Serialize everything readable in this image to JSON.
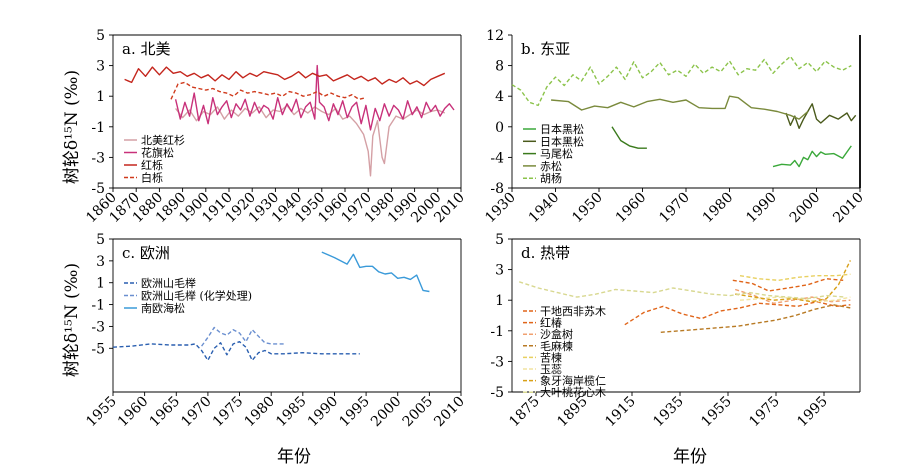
{
  "figure": {
    "ylabel_top": "树轮δ¹⁵N (‰)",
    "ylabel_bottom": "树轮δ¹⁵N (‰)",
    "xlabel_left": "年份",
    "xlabel_right": "年份"
  },
  "chart_data": [
    {
      "type": "line",
      "title": "a. 北美",
      "xlim": [
        1860,
        2010
      ],
      "ylim": [
        -5,
        5
      ],
      "xticks": [
        1860,
        1870,
        1880,
        1890,
        1900,
        1910,
        1920,
        1930,
        1940,
        1950,
        1960,
        1970,
        1980,
        1990,
        2000,
        2010
      ],
      "yticks": [
        -5,
        -3,
        -1,
        1,
        3,
        5
      ],
      "legend_position": "bottom-left",
      "grid": false,
      "series": [
        {
          "name": "北美红杉",
          "color": "#d4a0a5",
          "dash": "solid",
          "x": [
            1887,
            1890,
            1893,
            1896,
            1899,
            1902,
            1905,
            1908,
            1911,
            1914,
            1917,
            1920,
            1923,
            1926,
            1929,
            1932,
            1935,
            1938,
            1941,
            1944,
            1947,
            1950,
            1953,
            1956,
            1959,
            1962,
            1965,
            1968,
            1970,
            1971,
            1972,
            1974,
            1976,
            1977,
            1979,
            1982,
            1985,
            1988,
            1991,
            1994,
            1997,
            2000,
            2003
          ],
          "y": [
            0.2,
            -0.4,
            0.1,
            -0.6,
            0.0,
            -0.2,
            0.3,
            -0.5,
            0.1,
            -0.3,
            0.2,
            -0.1,
            0.3,
            -0.4,
            0.1,
            0.0,
            0.4,
            -0.2,
            0.2,
            -0.1,
            0.3,
            0.0,
            -0.2,
            0.2,
            -0.5,
            -0.3,
            -0.8,
            -1.5,
            -2.6,
            -4.2,
            -1.6,
            -0.6,
            -3.0,
            -3.4,
            -1.0,
            -0.3,
            -0.5,
            -0.2,
            0.1,
            -0.2,
            0.0,
            0.1,
            -0.1
          ]
        },
        {
          "name": "花旗松",
          "color": "#c8317a",
          "dash": "solid",
          "x": [
            1887,
            1889,
            1891,
            1893,
            1895,
            1897,
            1899,
            1901,
            1903,
            1905,
            1907,
            1909,
            1911,
            1913,
            1915,
            1917,
            1919,
            1921,
            1923,
            1925,
            1927,
            1929,
            1931,
            1933,
            1935,
            1937,
            1939,
            1941,
            1943,
            1945,
            1947,
            1948,
            1949,
            1951,
            1953,
            1955,
            1957,
            1959,
            1961,
            1963,
            1965,
            1967,
            1969,
            1971,
            1973,
            1975,
            1977,
            1979,
            1981,
            1983,
            1985,
            1987,
            1989,
            1991,
            1993,
            1995,
            1997,
            1999,
            2001,
            2003,
            2005,
            2007
          ],
          "y": [
            0.8,
            -0.5,
            0.6,
            -0.3,
            1.2,
            -0.6,
            0.4,
            -0.8,
            0.9,
            -0.2,
            0.3,
            0.7,
            -0.4,
            0.5,
            0.1,
            0.8,
            -0.3,
            0.6,
            -0.1,
            0.4,
            0.2,
            -0.5,
            0.9,
            -0.2,
            0.5,
            0.0,
            0.8,
            -0.4,
            0.3,
            0.6,
            -0.5,
            3.0,
            0.6,
            0.3,
            -0.6,
            0.5,
            -0.2,
            0.7,
            -0.4,
            0.3,
            0.6,
            -0.8,
            0.4,
            -1.2,
            0.2,
            -0.6,
            0.5,
            -0.3,
            0.4,
            0.1,
            -0.5,
            0.7,
            -0.2,
            0.3,
            -0.4,
            0.6,
            0.0,
            0.4,
            -0.3,
            0.2,
            0.5,
            0.1
          ]
        },
        {
          "name": "红栎",
          "color": "#c4261d",
          "dash": "solid",
          "x": [
            1865,
            1868,
            1871,
            1874,
            1877,
            1880,
            1883,
            1886,
            1889,
            1892,
            1895,
            1898,
            1901,
            1904,
            1907,
            1910,
            1913,
            1916,
            1919,
            1922,
            1925,
            1928,
            1931,
            1934,
            1937,
            1940,
            1943,
            1946,
            1949,
            1952,
            1955,
            1958,
            1961,
            1964,
            1967,
            1970,
            1973,
            1976,
            1979,
            1982,
            1985,
            1988,
            1991,
            1994,
            1997,
            2000,
            2003
          ],
          "y": [
            2.1,
            1.9,
            2.8,
            2.3,
            2.9,
            2.4,
            2.9,
            2.5,
            2.6,
            2.3,
            2.5,
            2.2,
            2.4,
            2.0,
            2.4,
            2.1,
            2.6,
            2.2,
            2.5,
            2.3,
            2.6,
            2.5,
            2.4,
            2.1,
            2.3,
            2.6,
            2.2,
            2.5,
            2.3,
            2.4,
            2.0,
            2.2,
            2.4,
            2.1,
            2.3,
            2.0,
            2.2,
            1.8,
            2.1,
            1.9,
            2.2,
            1.8,
            2.0,
            1.7,
            2.1,
            2.3,
            2.5
          ]
        },
        {
          "name": "白栎",
          "color": "#d03a1c",
          "dash": "dashed",
          "x": [
            1885,
            1888,
            1891,
            1894,
            1897,
            1900,
            1903,
            1906,
            1909,
            1912,
            1915,
            1918,
            1921,
            1924,
            1927,
            1930,
            1933,
            1936,
            1939,
            1942,
            1945,
            1948,
            1951,
            1954,
            1957,
            1960,
            1963,
            1966,
            1969
          ],
          "y": [
            0.8,
            1.8,
            1.9,
            1.6,
            1.5,
            1.4,
            1.5,
            1.3,
            1.2,
            1.0,
            1.4,
            1.2,
            1.3,
            1.2,
            1.1,
            1.2,
            1.0,
            1.3,
            1.2,
            1.0,
            1.1,
            1.3,
            1.0,
            1.2,
            1.0,
            0.9,
            1.1,
            0.8,
            0.9
          ]
        }
      ]
    },
    {
      "type": "line",
      "title": "b. 东亚",
      "xlim": [
        1930,
        2010
      ],
      "ylim": [
        -8,
        12
      ],
      "xticks": [
        1930,
        1940,
        1950,
        1960,
        1970,
        1980,
        1990,
        2000,
        2010
      ],
      "yticks": [
        -8,
        -4,
        0,
        4,
        8,
        12
      ],
      "legend_position": "bottom-left",
      "grid": false,
      "series": [
        {
          "name": "日本黑松",
          "color": "#3aa83a",
          "dash": "solid",
          "x": [
            1990,
            1992,
            1994,
            1995,
            1996,
            1997,
            1998,
            1999,
            2000,
            2001,
            2002,
            2004,
            2006,
            2008
          ],
          "y": [
            -5.2,
            -4.9,
            -5.0,
            -4.4,
            -5.2,
            -4.0,
            -4.3,
            -3.2,
            -3.9,
            -3.3,
            -3.6,
            -3.5,
            -4.1,
            -2.5
          ]
        },
        {
          "name": "日本黑松",
          "color": "#4a5a1c",
          "dash": "solid",
          "x": [
            1993,
            1994,
            1995,
            1996,
            1997,
            1998,
            1999,
            2000,
            2001,
            2003,
            2005,
            2007,
            2008,
            2009
          ],
          "y": [
            1.8,
            0.2,
            1.4,
            -0.2,
            1.0,
            2.0,
            3.0,
            1.0,
            0.5,
            1.5,
            1.0,
            1.8,
            0.8,
            1.5
          ]
        },
        {
          "name": "马尾松",
          "color": "#3a7a1c",
          "dash": "solid",
          "x": [
            1953,
            1955,
            1957,
            1959,
            1961
          ],
          "y": [
            0.0,
            -1.8,
            -2.5,
            -2.8,
            -2.8
          ]
        },
        {
          "name": "赤松",
          "color": "#7a8a3c",
          "dash": "solid",
          "x": [
            1939,
            1943,
            1946,
            1949,
            1952,
            1955,
            1958,
            1961,
            1964,
            1967,
            1970,
            1973,
            1976,
            1979,
            1980,
            1982,
            1985,
            1988,
            1991,
            1994,
            1996,
            1998
          ],
          "y": [
            3.5,
            3.3,
            2.2,
            2.7,
            2.5,
            3.2,
            2.6,
            3.3,
            3.6,
            3.2,
            3.5,
            2.5,
            2.4,
            2.4,
            4.0,
            3.8,
            2.5,
            2.3,
            2.0,
            1.5,
            1.0,
            2.0
          ]
        },
        {
          "name": "胡杨",
          "color": "#8bc34a",
          "dash": "dashed",
          "x": [
            1930,
            1932,
            1934,
            1936,
            1938,
            1940,
            1942,
            1944,
            1946,
            1948,
            1950,
            1952,
            1954,
            1956,
            1958,
            1960,
            1962,
            1964,
            1966,
            1968,
            1970,
            1972,
            1974,
            1976,
            1978,
            1980,
            1982,
            1984,
            1986,
            1988,
            1990,
            1992,
            1994,
            1996,
            1998,
            2000,
            2002,
            2004,
            2006,
            2008
          ],
          "y": [
            5.5,
            4.8,
            3.2,
            2.8,
            5.2,
            6.5,
            5.4,
            6.8,
            6.0,
            7.8,
            5.6,
            6.6,
            7.8,
            6.2,
            8.5,
            6.4,
            7.2,
            8.4,
            6.8,
            7.4,
            6.6,
            8.2,
            7.0,
            7.8,
            7.2,
            8.6,
            6.8,
            7.6,
            7.4,
            8.8,
            7.0,
            8.2,
            9.2,
            7.6,
            8.4,
            7.2,
            8.6,
            7.8,
            7.4,
            8.0
          ]
        }
      ]
    },
    {
      "type": "line",
      "title": "c. 欧洲",
      "xlim": [
        1955,
        2010
      ],
      "ylim": [
        -9,
        5
      ],
      "xticks": [
        1955,
        1960,
        1965,
        1970,
        1975,
        1980,
        1985,
        1990,
        1995,
        2000,
        2005,
        2010
      ],
      "yticks": [
        -5,
        -3,
        -1,
        1,
        3,
        5
      ],
      "legend_position": "top-left",
      "grid": false,
      "series": [
        {
          "name": "欧洲山毛榉",
          "color": "#2a5fb0",
          "dash": "dashed",
          "x": [
            1955,
            1958,
            1961,
            1964,
            1967,
            1968,
            1969,
            1970,
            1971,
            1972,
            1973,
            1974,
            1975,
            1976,
            1977,
            1978,
            1979,
            1980,
            1982,
            1985,
            1988,
            1991,
            1994
          ],
          "y": [
            -4.9,
            -4.8,
            -4.6,
            -4.7,
            -4.7,
            -4.6,
            -5.2,
            -6.1,
            -5.0,
            -4.5,
            -5.6,
            -4.6,
            -4.4,
            -4.9,
            -6.1,
            -5.4,
            -5.2,
            -5.5,
            -5.5,
            -5.4,
            -5.5,
            -5.5,
            -5.5
          ]
        },
        {
          "name": "欧洲山毛榉 (化学处理)",
          "color": "#6a8fd0",
          "dash": "dashed",
          "x": [
            1969,
            1970,
            1971,
            1972,
            1973,
            1974,
            1975,
            1976,
            1977,
            1978,
            1979,
            1980,
            1981,
            1982
          ],
          "y": [
            -4.8,
            -4.0,
            -3.1,
            -3.6,
            -3.8,
            -3.3,
            -3.6,
            -4.4,
            -3.3,
            -3.9,
            -4.5,
            -4.6,
            -4.6,
            -4.6
          ]
        },
        {
          "name": "南欧海松",
          "color": "#3a9ad9",
          "dash": "solid",
          "x": [
            1988,
            1990,
            1992,
            1993,
            1994,
            1995,
            1996,
            1997,
            1998,
            1999,
            2000,
            2001,
            2002,
            2003,
            2004,
            2005
          ],
          "y": [
            3.8,
            3.3,
            2.7,
            3.6,
            2.4,
            2.5,
            2.5,
            2.0,
            1.8,
            1.9,
            1.4,
            1.5,
            1.3,
            1.7,
            0.3,
            0.2
          ]
        }
      ]
    },
    {
      "type": "line",
      "title": "d. 热带",
      "xlim": [
        1865,
        2010
      ],
      "ylim": [
        -5,
        5
      ],
      "xticks": [
        1875,
        1895,
        1915,
        1935,
        1955,
        1975,
        1995
      ],
      "yticks": [
        -5,
        -3,
        -1,
        1,
        3,
        5
      ],
      "legend_position": "center-left",
      "grid": false,
      "series": [
        {
          "name": "干地西非苏木",
          "color": "#e0651a",
          "dash": "dashed",
          "x": [
            1957,
            1965,
            1972,
            1980,
            1988,
            1996,
            2003
          ],
          "y": [
            2.3,
            2.1,
            1.6,
            1.8,
            2.0,
            2.4,
            2.3
          ]
        },
        {
          "name": "红椿",
          "color": "#e0651a",
          "dash": "dashed",
          "x": [
            1912,
            1920,
            1928,
            1936,
            1944,
            1952,
            1960,
            1968,
            1976,
            1984,
            1992,
            2000,
            2006
          ],
          "y": [
            -0.6,
            0.2,
            0.6,
            0.1,
            -0.2,
            0.3,
            0.5,
            0.8,
            0.7,
            0.6,
            0.9,
            0.6,
            0.7
          ]
        },
        {
          "name": "沙盒树",
          "color": "#f0a070",
          "dash": "dashed",
          "x": [
            1958,
            1966,
            1974,
            1982,
            1990,
            1998,
            2006
          ],
          "y": [
            1.7,
            1.3,
            0.8,
            1.0,
            1.2,
            0.9,
            1.0
          ]
        },
        {
          "name": "毛麻楝",
          "color": "#b87a24",
          "dash": "dashed",
          "x": [
            1927,
            1935,
            1943,
            1951,
            1959,
            1967,
            1975,
            1983,
            1991,
            1999,
            2006
          ],
          "y": [
            -1.1,
            -1.0,
            -0.9,
            -0.8,
            -0.7,
            -0.5,
            -0.3,
            0.0,
            0.4,
            0.7,
            0.5
          ]
        },
        {
          "name": "苦楝",
          "color": "#e8d060",
          "dash": "dashed",
          "x": [
            1960,
            1968,
            1976,
            1984,
            1992,
            2000,
            2006
          ],
          "y": [
            2.6,
            2.4,
            2.3,
            2.5,
            2.6,
            2.6,
            2.7
          ]
        },
        {
          "name": "玉蕊",
          "color": "#f2e4a0",
          "dash": "dashed",
          "x": [
            1960,
            1968,
            1976,
            1984,
            1992,
            2000,
            2006
          ],
          "y": [
            1.0,
            1.1,
            1.2,
            1.1,
            0.9,
            1.0,
            1.2
          ]
        },
        {
          "name": "象牙海岸榄仁",
          "color": "#d8a018",
          "dash": "dashed",
          "x": [
            1958,
            1966,
            1974,
            1982,
            1990,
            1996,
            2001,
            2006
          ],
          "y": [
            1.4,
            1.2,
            1.0,
            1.1,
            0.9,
            1.1,
            2.0,
            3.6
          ]
        },
        {
          "name": "大叶桃花心木",
          "color": "#d8d890",
          "dash": "dashed",
          "x": [
            1868,
            1876,
            1884,
            1892,
            1900,
            1908,
            1916,
            1924,
            1932,
            1940,
            1948,
            1956,
            1964,
            1972,
            1980,
            1988,
            1996,
            2004
          ],
          "y": [
            2.2,
            1.8,
            1.5,
            1.2,
            1.4,
            1.7,
            1.6,
            1.5,
            1.8,
            1.6,
            1.4,
            1.3,
            1.5,
            1.3,
            1.2,
            1.1,
            1.3,
            1.2
          ]
        }
      ]
    }
  ]
}
